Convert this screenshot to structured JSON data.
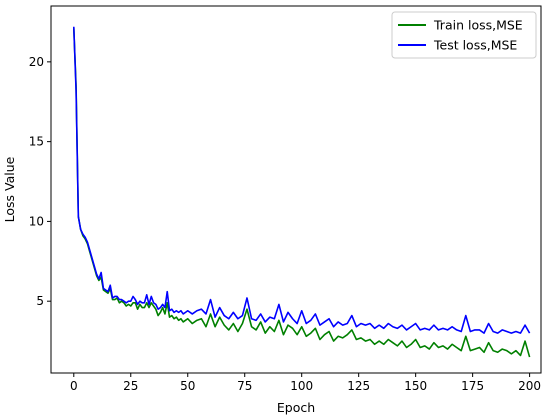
{
  "chart_data": {
    "type": "line",
    "title": "",
    "xlabel": "Epoch",
    "ylabel": "Loss Value",
    "xlim": [
      -10,
      205
    ],
    "ylim": [
      0.5,
      23.5
    ],
    "xticks": [
      0,
      25,
      50,
      75,
      100,
      125,
      150,
      175,
      200
    ],
    "yticks": [
      5,
      10,
      15,
      20
    ],
    "grid": false,
    "legend_position": "top-right",
    "series": [
      {
        "name": "Train loss,MSE",
        "color": "#008000",
        "x": [
          0,
          1,
          2,
          3,
          4,
          5,
          6,
          7,
          8,
          9,
          10,
          11,
          12,
          13,
          14,
          15,
          16,
          17,
          18,
          19,
          20,
          21,
          22,
          23,
          24,
          25,
          26,
          27,
          28,
          29,
          30,
          31,
          32,
          33,
          34,
          35,
          36,
          37,
          38,
          39,
          40,
          41,
          42,
          43,
          44,
          45,
          46,
          47,
          48,
          49,
          50,
          52,
          54,
          56,
          58,
          60,
          62,
          64,
          66,
          68,
          70,
          72,
          74,
          76,
          78,
          80,
          82,
          84,
          86,
          88,
          90,
          92,
          94,
          96,
          98,
          100,
          102,
          104,
          106,
          108,
          110,
          112,
          114,
          116,
          118,
          120,
          122,
          124,
          126,
          128,
          130,
          132,
          134,
          136,
          138,
          140,
          142,
          144,
          146,
          148,
          150,
          152,
          154,
          156,
          158,
          160,
          162,
          164,
          166,
          168,
          170,
          172,
          174,
          176,
          178,
          180,
          182,
          184,
          186,
          188,
          190,
          192,
          194,
          196,
          198,
          200
        ],
        "y": [
          22.1,
          18.5,
          10.3,
          9.5,
          9.1,
          8.9,
          8.6,
          8.1,
          7.6,
          7.1,
          6.6,
          6.3,
          6.5,
          5.7,
          5.6,
          5.5,
          5.8,
          5.1,
          5.1,
          5.2,
          4.9,
          5.0,
          4.9,
          4.7,
          4.8,
          4.7,
          4.9,
          4.9,
          4.5,
          4.8,
          4.6,
          4.6,
          4.9,
          4.6,
          4.9,
          4.7,
          4.5,
          4.1,
          4.3,
          4.6,
          4.2,
          4.9,
          4.0,
          4.1,
          3.9,
          4.0,
          3.8,
          3.9,
          3.7,
          3.8,
          3.9,
          3.6,
          3.8,
          3.9,
          3.4,
          4.2,
          3.4,
          4.0,
          3.5,
          3.2,
          3.6,
          3.1,
          3.6,
          4.5,
          3.4,
          3.2,
          3.7,
          3.0,
          3.4,
          3.1,
          3.8,
          2.9,
          3.5,
          3.3,
          2.9,
          3.4,
          2.8,
          3.0,
          3.3,
          2.6,
          2.9,
          3.1,
          2.5,
          2.8,
          2.7,
          2.9,
          3.2,
          2.6,
          2.7,
          2.5,
          2.6,
          2.3,
          2.5,
          2.3,
          2.6,
          2.4,
          2.2,
          2.5,
          2.1,
          2.3,
          2.6,
          2.1,
          2.2,
          2.0,
          2.4,
          2.1,
          2.2,
          2.0,
          2.3,
          2.1,
          1.9,
          2.8,
          1.9,
          2.0,
          2.1,
          1.8,
          2.4,
          1.9,
          1.8,
          2.0,
          1.9,
          1.7,
          1.9,
          1.6,
          2.5,
          1.5
        ]
      },
      {
        "name": "Test loss,MSE",
        "color": "#0000ff",
        "x": [
          0,
          1,
          2,
          3,
          4,
          5,
          6,
          7,
          8,
          9,
          10,
          11,
          12,
          13,
          14,
          15,
          16,
          17,
          18,
          19,
          20,
          21,
          22,
          23,
          24,
          25,
          26,
          27,
          28,
          29,
          30,
          31,
          32,
          33,
          34,
          35,
          36,
          37,
          38,
          39,
          40,
          41,
          42,
          43,
          44,
          45,
          46,
          47,
          48,
          49,
          50,
          52,
          54,
          56,
          58,
          60,
          62,
          64,
          66,
          68,
          70,
          72,
          74,
          76,
          78,
          80,
          82,
          84,
          86,
          88,
          90,
          92,
          94,
          96,
          98,
          100,
          102,
          104,
          106,
          108,
          110,
          112,
          114,
          116,
          118,
          120,
          122,
          124,
          126,
          128,
          130,
          132,
          134,
          136,
          138,
          140,
          142,
          144,
          146,
          148,
          150,
          152,
          154,
          156,
          158,
          160,
          162,
          164,
          166,
          168,
          170,
          172,
          174,
          176,
          178,
          180,
          182,
          184,
          186,
          188,
          190,
          192,
          194,
          196,
          198,
          200
        ],
        "y": [
          22.2,
          18.2,
          10.3,
          9.5,
          9.2,
          9.0,
          8.7,
          8.2,
          7.7,
          7.2,
          6.7,
          6.4,
          6.8,
          5.8,
          5.7,
          5.6,
          6.0,
          5.2,
          5.3,
          5.3,
          5.1,
          5.1,
          5.0,
          4.9,
          5.0,
          5.0,
          5.3,
          5.1,
          4.8,
          5.0,
          4.9,
          4.9,
          5.4,
          4.8,
          5.3,
          4.9,
          4.8,
          4.5,
          4.6,
          4.8,
          4.6,
          5.6,
          4.4,
          4.5,
          4.3,
          4.4,
          4.3,
          4.4,
          4.2,
          4.3,
          4.4,
          4.2,
          4.4,
          4.5,
          4.2,
          5.1,
          4.0,
          4.6,
          4.1,
          3.9,
          4.3,
          3.9,
          4.1,
          5.2,
          3.9,
          3.8,
          4.2,
          3.7,
          4.0,
          3.9,
          4.8,
          3.7,
          4.3,
          3.9,
          3.6,
          4.4,
          3.6,
          3.8,
          4.2,
          3.5,
          3.7,
          3.9,
          3.4,
          3.7,
          3.5,
          3.6,
          4.1,
          3.4,
          3.6,
          3.5,
          3.6,
          3.3,
          3.5,
          3.3,
          3.6,
          3.4,
          3.3,
          3.5,
          3.2,
          3.4,
          3.6,
          3.2,
          3.3,
          3.2,
          3.5,
          3.2,
          3.3,
          3.2,
          3.4,
          3.2,
          3.1,
          4.1,
          3.1,
          3.2,
          3.2,
          3.0,
          3.6,
          3.1,
          3.0,
          3.2,
          3.1,
          3.0,
          3.1,
          3.0,
          3.5,
          3.0
        ]
      }
    ]
  }
}
